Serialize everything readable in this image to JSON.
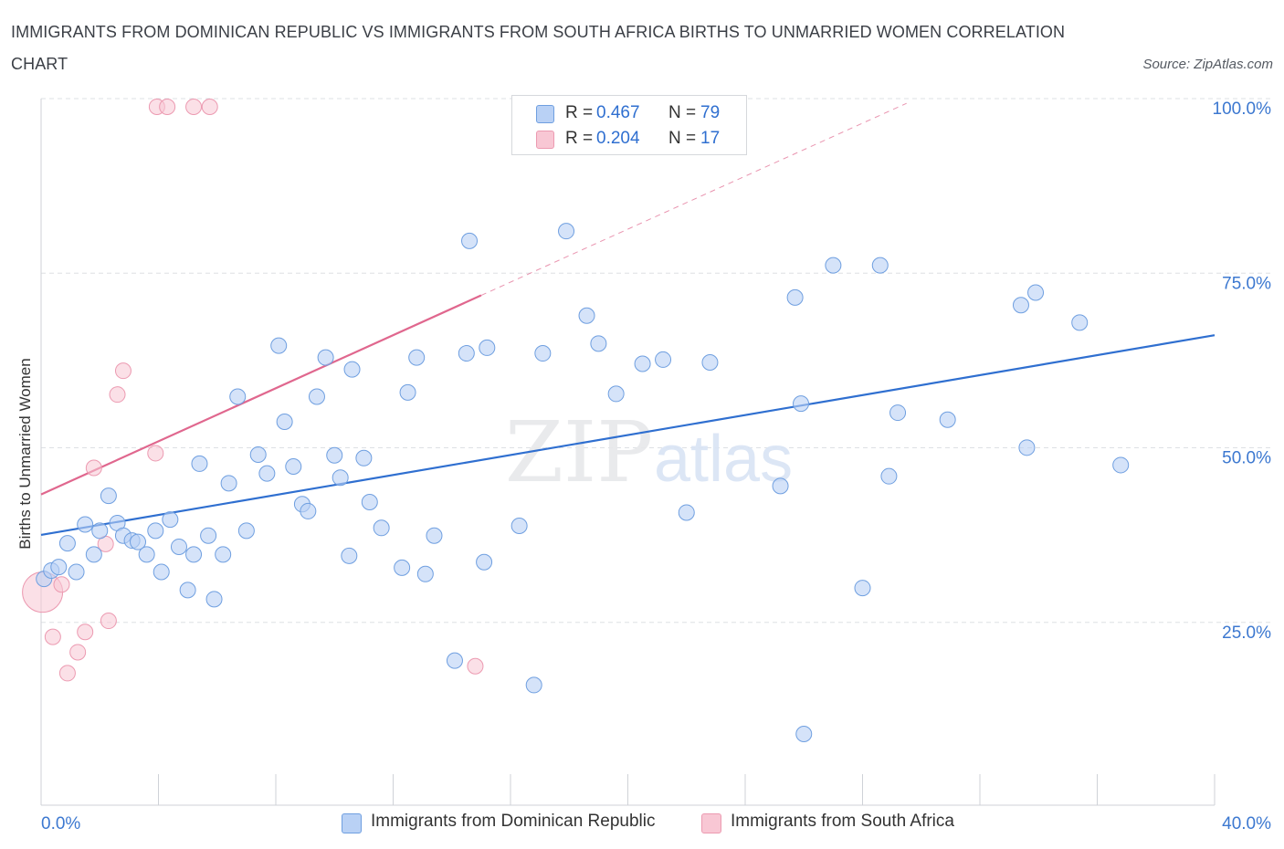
{
  "header": {
    "title": "IMMIGRANTS FROM DOMINICAN REPUBLIC VS IMMIGRANTS FROM SOUTH AFRICA BIRTHS TO UNMARRIED WOMEN CORRELATION CHART",
    "source": "Source: ZipAtlas.com"
  },
  "legend": {
    "r_label": "R =",
    "n_label": "N =",
    "series": [
      {
        "r": "0.467",
        "n": "79"
      },
      {
        "r": "0.204",
        "n": "17"
      }
    ]
  },
  "colors": {
    "blue_fill": "#b9d1f5",
    "blue_stroke": "#6f9fe0",
    "blue_line": "#2f6fd0",
    "pink_fill": "#f8c7d4",
    "pink_stroke": "#ec9ab1",
    "pink_line": "#e0678e",
    "tick_label": "#3c78d0",
    "grid": "#dde0e4"
  },
  "watermark": {
    "zip": "ZIP",
    "atlas": "atlas"
  },
  "chart_data": {
    "type": "scatter",
    "title": "IMMIGRANTS FROM DOMINICAN REPUBLIC VS IMMIGRANTS FROM SOUTH AFRICA BIRTHS TO UNMARRIED WOMEN CORRELATION CHART",
    "xlabel": "",
    "ylabel": "Births to Unmarried Women",
    "xlim": [
      0,
      40
    ],
    "ylim": [
      0,
      100
    ],
    "x_tick_labels": [
      "0.0%",
      "40.0%"
    ],
    "y_ticks": [
      25,
      50,
      75,
      100
    ],
    "y_tick_labels": [
      "25.0%",
      "50.0%",
      "75.0%",
      "100.0%"
    ],
    "grid": true,
    "series": [
      {
        "name": "Immigrants from Dominican Republic",
        "color": "blue",
        "r": 0.467,
        "n": 79,
        "trend": {
          "x0": 0,
          "y0": 38.7,
          "x1": 40,
          "y1": 67.3
        },
        "points": [
          [
            0.1,
            32.4
          ],
          [
            0.35,
            33.6
          ],
          [
            0.6,
            34.1
          ],
          [
            0.9,
            37.5
          ],
          [
            1.2,
            33.4
          ],
          [
            1.5,
            40.2
          ],
          [
            1.8,
            35.9
          ],
          [
            2.0,
            39.3
          ],
          [
            2.3,
            44.3
          ],
          [
            2.6,
            40.4
          ],
          [
            2.8,
            38.6
          ],
          [
            3.1,
            37.9
          ],
          [
            3.3,
            37.7
          ],
          [
            3.6,
            35.9
          ],
          [
            3.9,
            39.3
          ],
          [
            4.1,
            33.4
          ],
          [
            4.4,
            40.9
          ],
          [
            4.7,
            37.0
          ],
          [
            5.0,
            30.8
          ],
          [
            5.2,
            35.9
          ],
          [
            5.4,
            48.9
          ],
          [
            5.7,
            38.6
          ],
          [
            5.9,
            29.5
          ],
          [
            6.2,
            35.9
          ],
          [
            6.4,
            46.1
          ],
          [
            6.7,
            58.5
          ],
          [
            7.0,
            39.3
          ],
          [
            7.4,
            50.2
          ],
          [
            7.7,
            47.5
          ],
          [
            8.1,
            65.8
          ],
          [
            8.3,
            54.9
          ],
          [
            8.6,
            48.5
          ],
          [
            8.9,
            43.1
          ],
          [
            9.1,
            42.1
          ],
          [
            9.4,
            58.5
          ],
          [
            9.7,
            64.1
          ],
          [
            10.0,
            50.1
          ],
          [
            10.2,
            46.9
          ],
          [
            10.5,
            35.7
          ],
          [
            10.6,
            62.4
          ],
          [
            11.0,
            49.7
          ],
          [
            11.2,
            43.4
          ],
          [
            11.6,
            39.7
          ],
          [
            12.3,
            34.0
          ],
          [
            12.5,
            59.1
          ],
          [
            12.8,
            64.1
          ],
          [
            13.1,
            33.1
          ],
          [
            13.4,
            38.6
          ],
          [
            14.1,
            20.7
          ],
          [
            14.5,
            64.7
          ],
          [
            14.6,
            80.8
          ],
          [
            15.1,
            34.8
          ],
          [
            15.2,
            65.5
          ],
          [
            16.3,
            40.0
          ],
          [
            16.8,
            17.2
          ],
          [
            17.1,
            64.7
          ],
          [
            17.9,
            82.2
          ],
          [
            18.6,
            70.1
          ],
          [
            19.0,
            66.1
          ],
          [
            19.6,
            58.9
          ],
          [
            20.5,
            63.2
          ],
          [
            21.2,
            63.8
          ],
          [
            22.0,
            41.9
          ],
          [
            22.8,
            63.4
          ],
          [
            25.2,
            45.7
          ],
          [
            25.7,
            72.7
          ],
          [
            25.9,
            57.5
          ],
          [
            26.0,
            10.2
          ],
          [
            27.0,
            77.3
          ],
          [
            28.0,
            31.1
          ],
          [
            28.6,
            77.3
          ],
          [
            28.9,
            47.1
          ],
          [
            29.2,
            56.2
          ],
          [
            30.9,
            55.2
          ],
          [
            33.4,
            71.6
          ],
          [
            33.6,
            51.2
          ],
          [
            33.9,
            73.4
          ],
          [
            35.4,
            69.1
          ],
          [
            36.8,
            48.7
          ]
        ]
      },
      {
        "name": "Immigrants from South Africa",
        "color": "pink",
        "r": 0.204,
        "n": 17,
        "trend": {
          "x0": 0,
          "y0": 44.5,
          "x1": 15,
          "y1": 73.0
        },
        "trend_extension": {
          "x0": 15,
          "y0": 73.0,
          "x1": 29.5,
          "y1": 100.5
        },
        "points": [
          [
            0.05,
            30.5
          ],
          [
            0.4,
            24.1
          ],
          [
            0.7,
            31.6
          ],
          [
            0.9,
            18.9
          ],
          [
            1.25,
            21.9
          ],
          [
            1.5,
            24.8
          ],
          [
            1.8,
            48.3
          ],
          [
            2.2,
            37.4
          ],
          [
            2.3,
            26.4
          ],
          [
            2.6,
            58.8
          ],
          [
            2.8,
            62.2
          ],
          [
            3.9,
            50.4
          ],
          [
            3.95,
            100.0
          ],
          [
            4.3,
            100.0
          ],
          [
            5.2,
            100.0
          ],
          [
            5.75,
            100.0
          ],
          [
            14.8,
            19.9
          ]
        ]
      }
    ]
  },
  "bottom_legend": [
    {
      "label": "Immigrants from Dominican Republic"
    },
    {
      "label": "Immigrants from South Africa"
    }
  ]
}
